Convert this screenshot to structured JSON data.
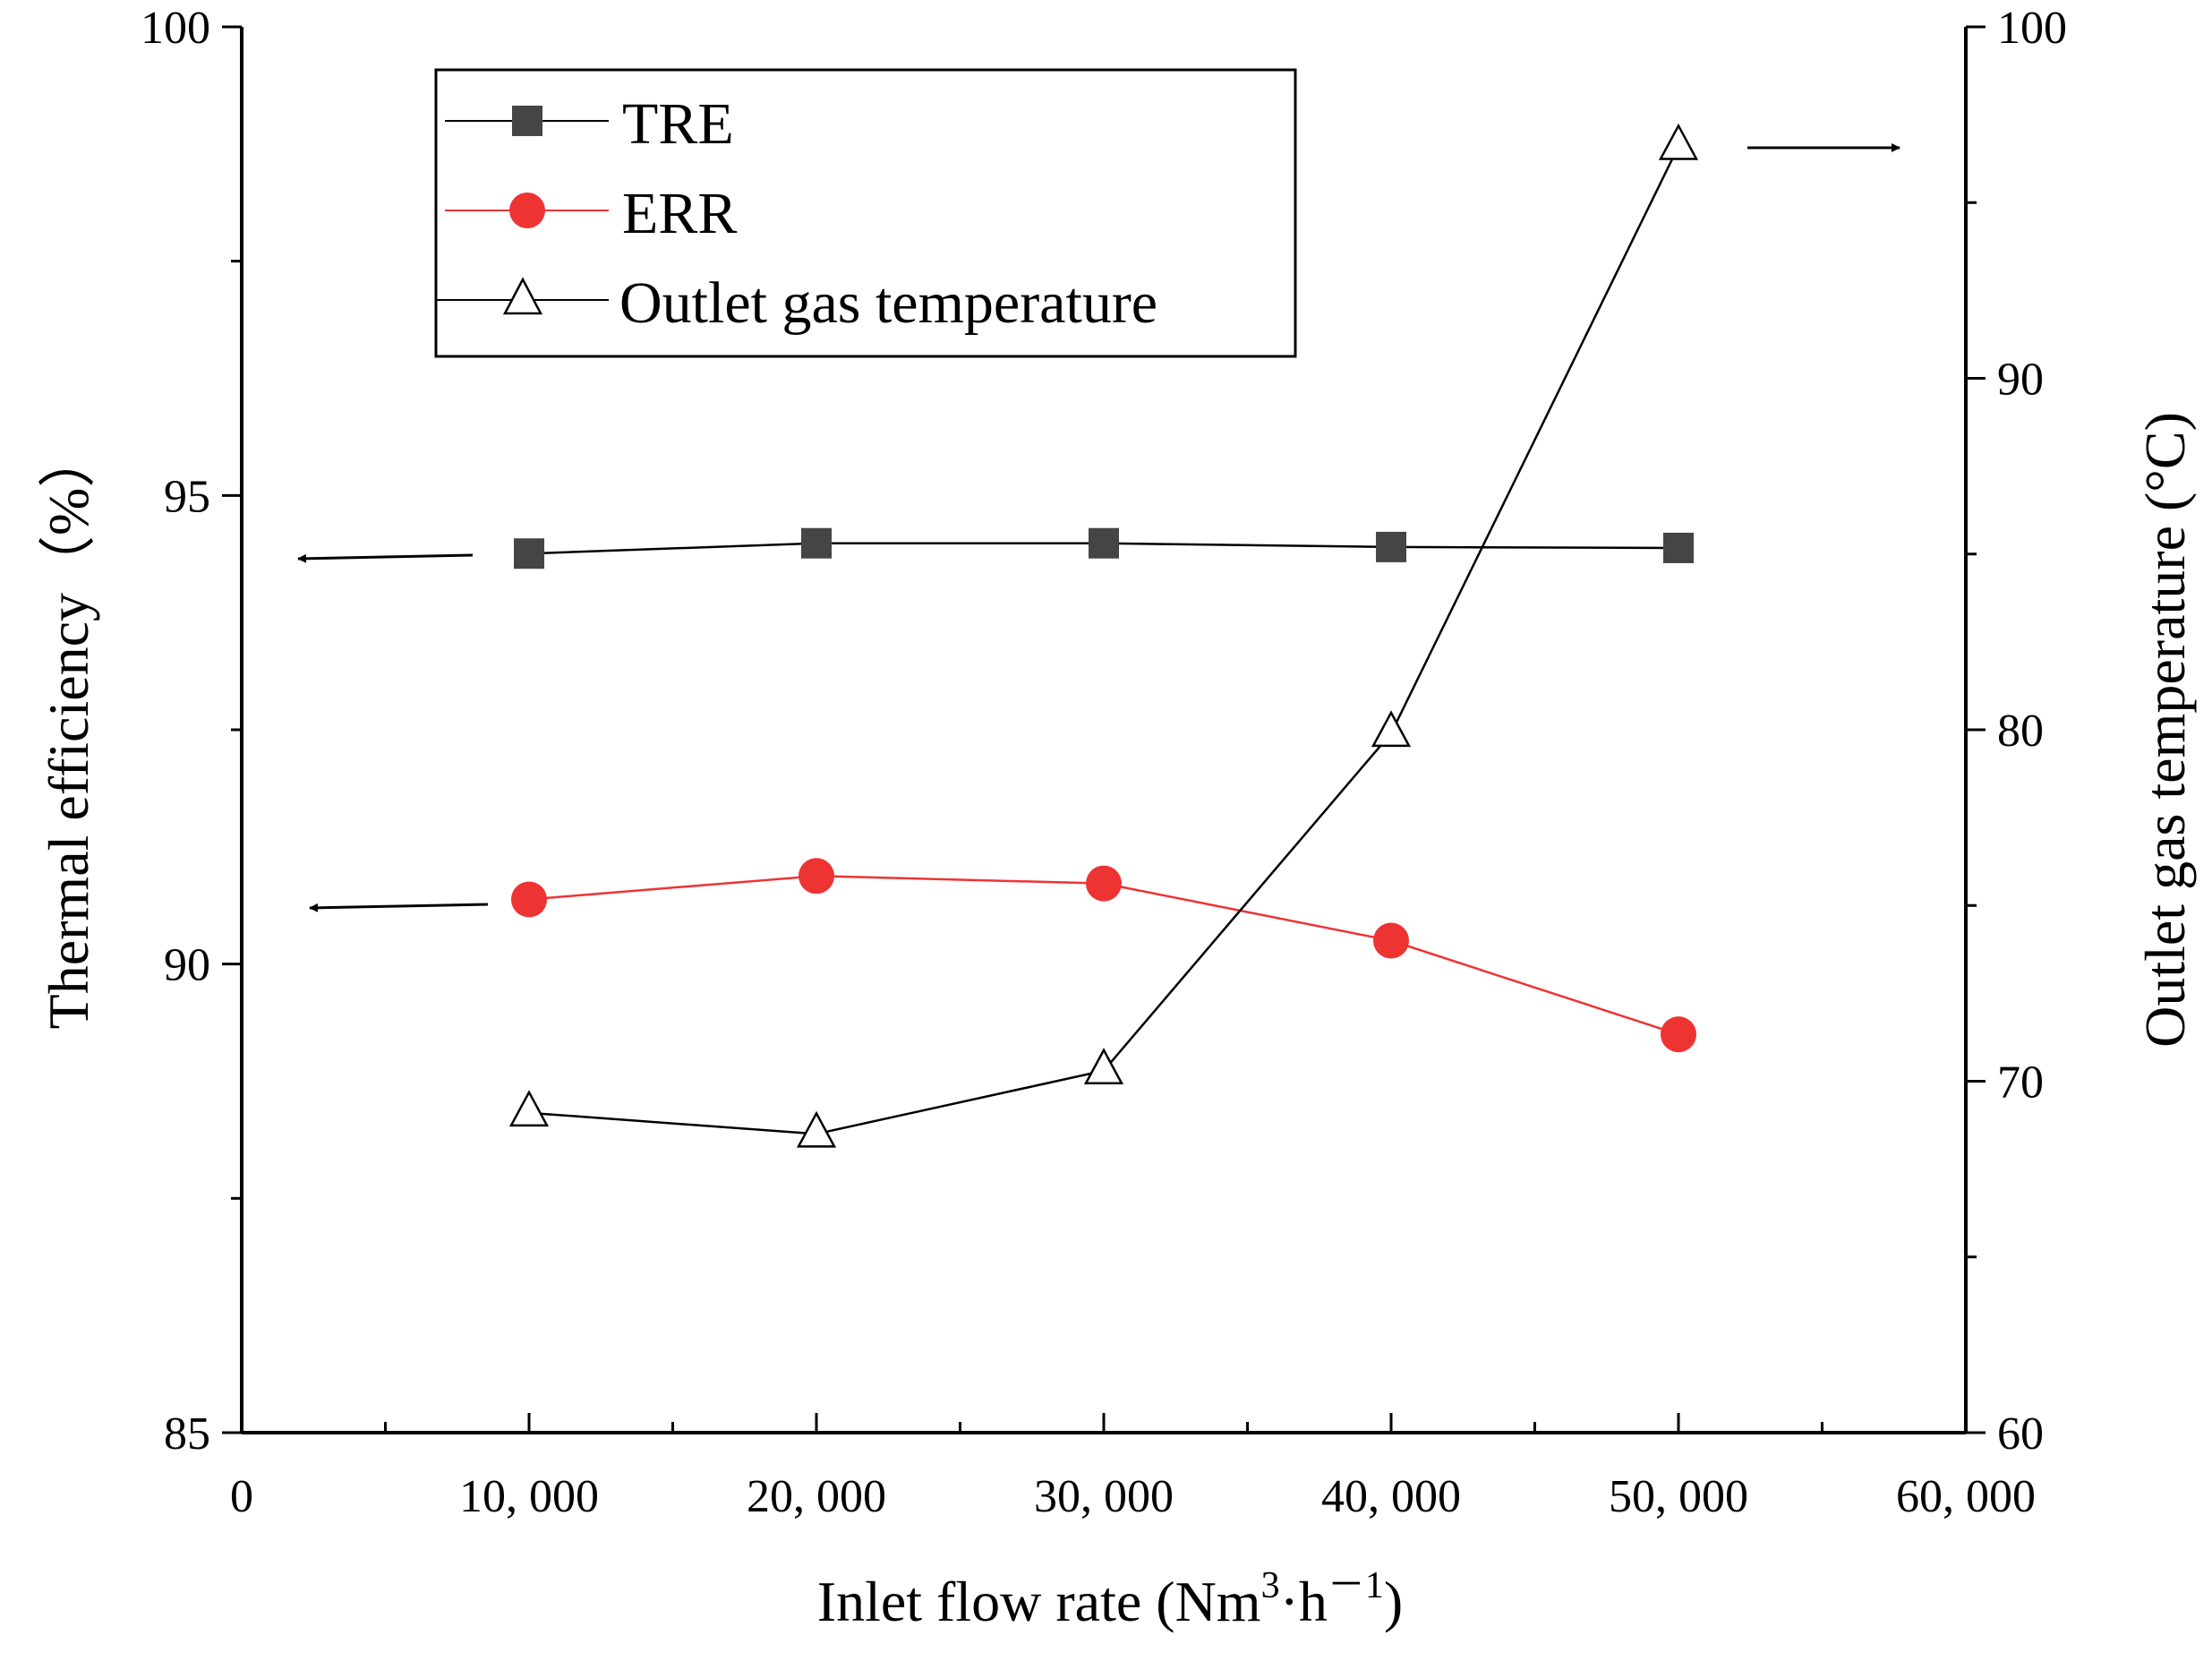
{
  "chart_data": {
    "type": "line",
    "x": [
      10000,
      20000,
      30000,
      40000,
      50000
    ],
    "xlabel": "Inlet flow rate (Nm",
    "xlabel_sup": "3",
    "xlabel_mid": "·h",
    "xlabel_sup2": "－1",
    "xlabel_end": ")",
    "ylabel_left": "Thermal efficiency（%）",
    "ylabel_right": "Outlet gas temperature (°C)",
    "xlim": [
      0,
      60000
    ],
    "ylim_left": [
      85,
      100
    ],
    "ylim_right": [
      60,
      100
    ],
    "x_ticks": [
      0,
      10000,
      20000,
      30000,
      40000,
      50000,
      60000
    ],
    "x_tick_labels": [
      "0",
      "10, 000",
      "20, 000",
      "30, 000",
      "40, 000",
      "50, 000",
      "60, 000"
    ],
    "y_left_ticks": [
      85,
      90,
      95,
      100
    ],
    "y_left_tick_labels": [
      "85",
      "90",
      "95",
      "100"
    ],
    "y_right_ticks": [
      60,
      70,
      80,
      90,
      100
    ],
    "y_right_tick_labels": [
      "60",
      "70",
      "80",
      "90",
      "100"
    ],
    "series": [
      {
        "name": "TRE",
        "axis": "left",
        "marker": "square",
        "color": "#454545",
        "line_color": "#000000",
        "values": [
          94.38,
          94.49,
          94.49,
          94.45,
          94.44
        ]
      },
      {
        "name": "ERR",
        "axis": "left",
        "marker": "circle",
        "color": "#ee3333",
        "line_color": "#ee3333",
        "values": [
          90.69,
          90.94,
          90.86,
          90.25,
          89.25
        ]
      },
      {
        "name": "Outlet gas temperature",
        "axis": "right",
        "marker": "triangle",
        "color": "#ffffff",
        "line_color": "#000000",
        "values": [
          69.1,
          68.5,
          70.3,
          79.9,
          96.6
        ]
      }
    ],
    "legend": {
      "position": "top-left",
      "entries": [
        "TRE",
        "ERR",
        "Outlet gas temperature"
      ]
    },
    "annotations": [
      {
        "type": "arrow",
        "points_to": "left-axis",
        "series": "TRE"
      },
      {
        "type": "arrow",
        "points_to": "left-axis",
        "series": "ERR"
      },
      {
        "type": "arrow",
        "points_to": "right-axis",
        "series": "Outlet gas temperature"
      }
    ]
  }
}
